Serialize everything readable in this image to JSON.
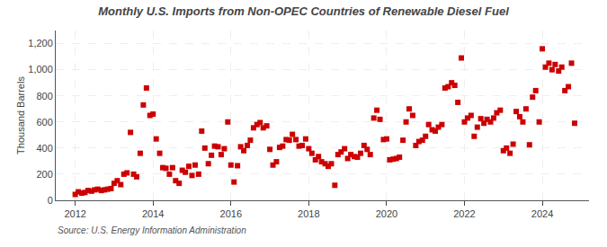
{
  "chart_data": {
    "type": "scatter",
    "title": "Monthly U.S. Imports from Non-OPEC Countries of Renewable Diesel Fuel",
    "ylabel": "Thousand Barrels",
    "annotations": [
      "Source: U.S. Energy Information Administration"
    ],
    "color": "#cc0000",
    "marker": "square",
    "grid": true,
    "xlim": [
      2011.5,
      2025.2
    ],
    "xticks": [
      2012,
      2014,
      2016,
      2018,
      2020,
      2022,
      2024
    ],
    "ylim": [
      0,
      1300
    ],
    "yticks": [
      0,
      200,
      400,
      600,
      800,
      {
        "value": 1000,
        "label": "1,000"
      },
      {
        "value": 1200,
        "label": "1,200"
      }
    ],
    "x": [
      2012.0,
      2012.08,
      2012.17,
      2012.25,
      2012.33,
      2012.42,
      2012.5,
      2012.58,
      2012.67,
      2012.75,
      2012.83,
      2012.92,
      2013.0,
      2013.08,
      2013.17,
      2013.25,
      2013.33,
      2013.42,
      2013.5,
      2013.58,
      2013.67,
      2013.75,
      2013.83,
      2013.92,
      2014.0,
      2014.08,
      2014.17,
      2014.25,
      2014.33,
      2014.42,
      2014.5,
      2014.58,
      2014.67,
      2014.75,
      2014.83,
      2014.92,
      2015.0,
      2015.08,
      2015.17,
      2015.25,
      2015.33,
      2015.42,
      2015.5,
      2015.58,
      2015.67,
      2015.75,
      2015.83,
      2015.92,
      2016.0,
      2016.08,
      2016.17,
      2016.25,
      2016.33,
      2016.42,
      2016.5,
      2016.58,
      2016.67,
      2016.75,
      2016.83,
      2016.92,
      2017.0,
      2017.08,
      2017.17,
      2017.25,
      2017.33,
      2017.42,
      2017.5,
      2017.58,
      2017.67,
      2017.75,
      2017.83,
      2017.92,
      2018.0,
      2018.08,
      2018.17,
      2018.25,
      2018.33,
      2018.42,
      2018.5,
      2018.58,
      2018.67,
      2018.75,
      2018.83,
      2018.92,
      2019.0,
      2019.08,
      2019.17,
      2019.25,
      2019.33,
      2019.42,
      2019.5,
      2019.58,
      2019.67,
      2019.75,
      2019.83,
      2019.92,
      2020.0,
      2020.08,
      2020.17,
      2020.25,
      2020.33,
      2020.42,
      2020.5,
      2020.58,
      2020.67,
      2020.75,
      2020.83,
      2020.92,
      2021.0,
      2021.08,
      2021.17,
      2021.25,
      2021.33,
      2021.42,
      2021.5,
      2021.58,
      2021.67,
      2021.75,
      2021.83,
      2021.92,
      2022.0,
      2022.08,
      2022.17,
      2022.25,
      2022.33,
      2022.42,
      2022.5,
      2022.58,
      2022.67,
      2022.75,
      2022.83,
      2022.92,
      2023.0,
      2023.08,
      2023.17,
      2023.25,
      2023.33,
      2023.42,
      2023.5,
      2023.58,
      2023.67,
      2023.75,
      2023.83,
      2023.92,
      2024.0,
      2024.08,
      2024.17,
      2024.25,
      2024.33,
      2024.42,
      2024.5,
      2024.58,
      2024.67,
      2024.75,
      2024.83
    ],
    "values": [
      45,
      65,
      55,
      60,
      75,
      70,
      80,
      85,
      75,
      80,
      85,
      90,
      130,
      150,
      120,
      200,
      210,
      520,
      200,
      180,
      360,
      730,
      860,
      650,
      660,
      470,
      360,
      250,
      245,
      200,
      250,
      150,
      130,
      230,
      215,
      260,
      190,
      270,
      200,
      530,
      400,
      280,
      345,
      415,
      410,
      350,
      395,
      600,
      270,
      140,
      265,
      410,
      380,
      420,
      460,
      555,
      580,
      595,
      555,
      570,
      390,
      270,
      295,
      405,
      415,
      465,
      460,
      505,
      465,
      415,
      420,
      470,
      395,
      360,
      310,
      335,
      295,
      280,
      260,
      280,
      115,
      350,
      370,
      395,
      320,
      350,
      335,
      330,
      360,
      420,
      390,
      350,
      630,
      690,
      620,
      465,
      470,
      310,
      315,
      320,
      330,
      460,
      600,
      700,
      650,
      420,
      450,
      460,
      490,
      580,
      540,
      530,
      560,
      580,
      860,
      870,
      900,
      880,
      750,
      1090,
      600,
      630,
      650,
      490,
      560,
      625,
      590,
      620,
      600,
      630,
      670,
      690,
      380,
      400,
      360,
      430,
      680,
      640,
      600,
      700,
      425,
      790,
      840,
      600,
      1160,
      1020,
      1050,
      1000,
      1040,
      990,
      1020,
      840,
      870,
      1050,
      590
    ]
  }
}
